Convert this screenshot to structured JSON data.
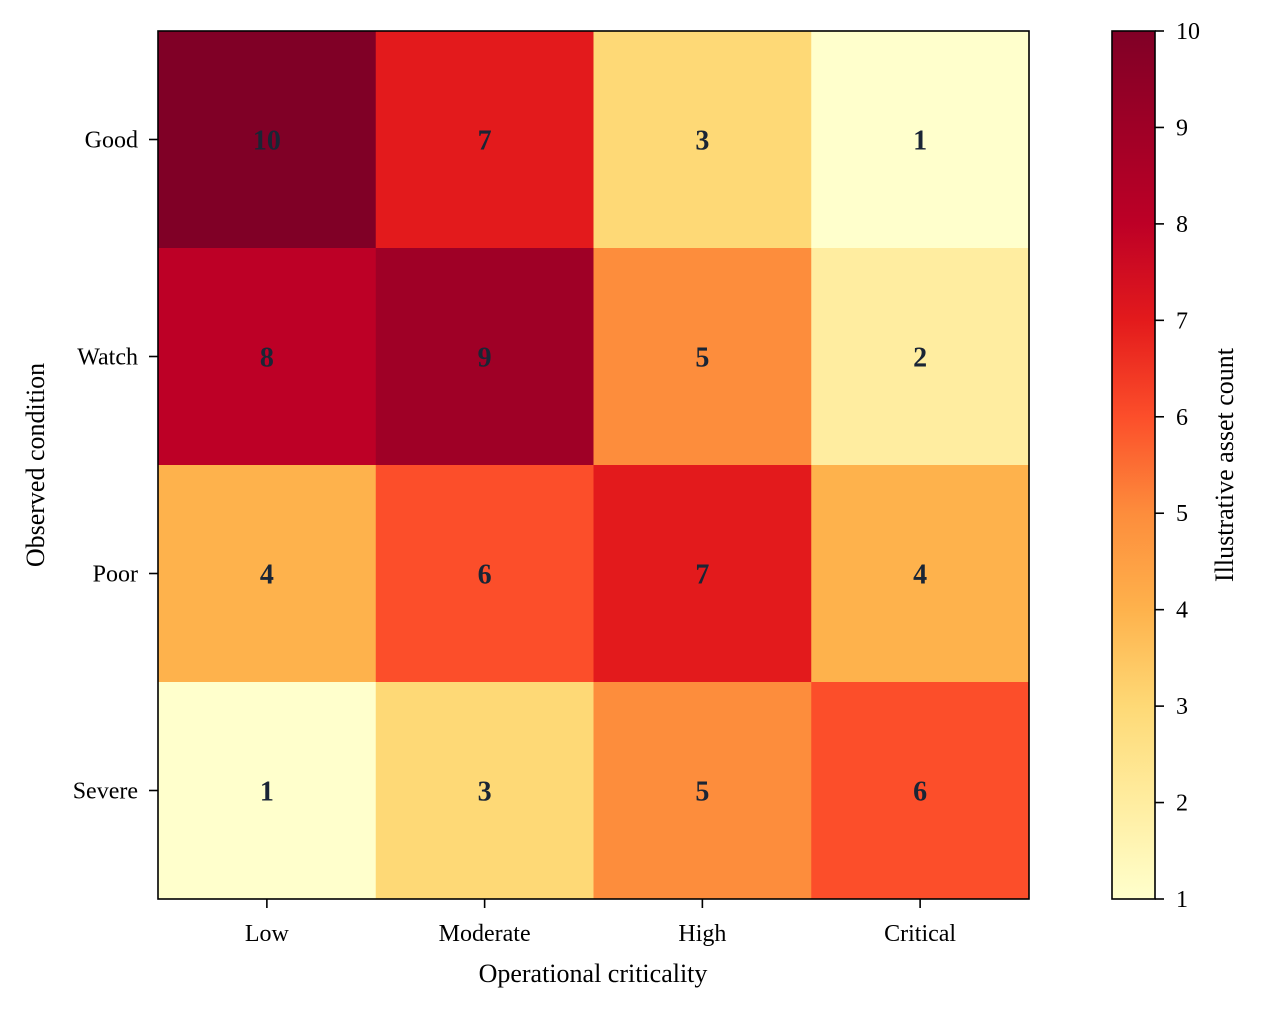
{
  "chart_data": {
    "type": "heatmap",
    "title": "",
    "xlabel": "Operational criticality",
    "ylabel": "Observed condition",
    "x_categories": [
      "Low",
      "Moderate",
      "High",
      "Critical"
    ],
    "y_categories": [
      "Good",
      "Watch",
      "Poor",
      "Severe"
    ],
    "values": [
      [
        10,
        7,
        3,
        1
      ],
      [
        8,
        9,
        5,
        2
      ],
      [
        4,
        6,
        7,
        4
      ],
      [
        1,
        3,
        5,
        6
      ]
    ],
    "colorbar": {
      "label": "Illustrative asset count",
      "range": [
        1,
        10
      ],
      "ticks": [
        "1",
        "2",
        "3",
        "4",
        "5",
        "6",
        "7",
        "8",
        "9",
        "10"
      ],
      "colormap": "YlOrRd"
    },
    "cell_annotations": true,
    "grid": false
  }
}
